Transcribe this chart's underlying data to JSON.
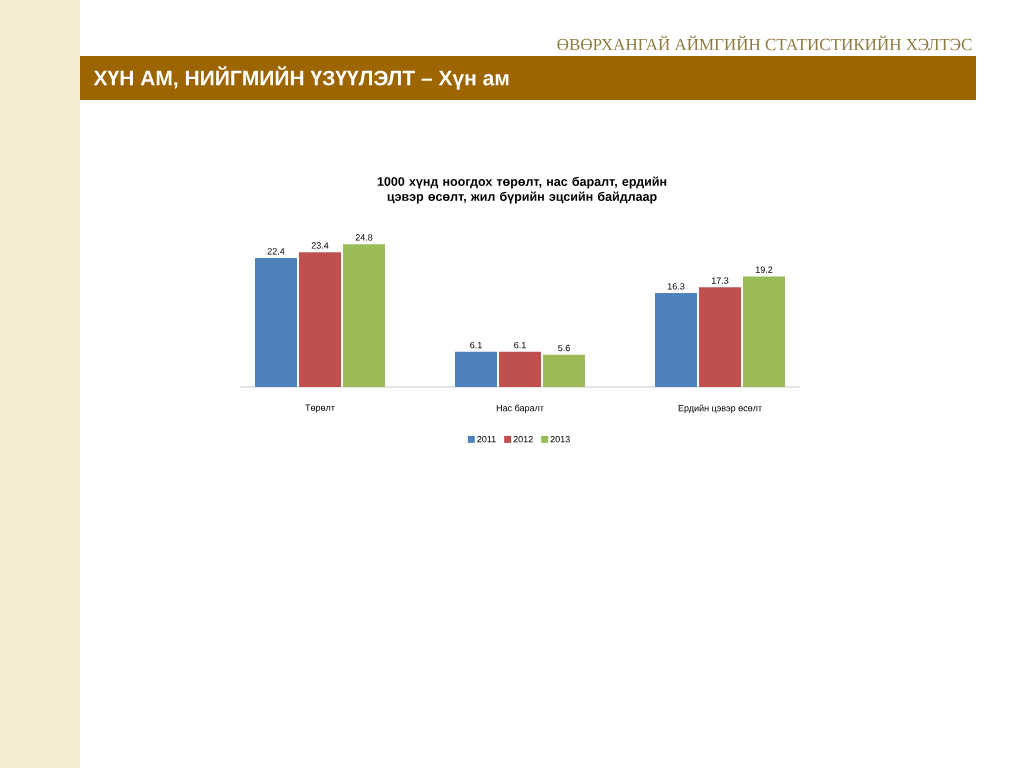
{
  "chart_data": {
    "type": "bar",
    "title": "1000 хүнд ноогдох төрөлт, нас баралт, ердийн цэвэр өсөлт, жил бүрийн эцсийн байдлаар",
    "categories": [
      "Төрөлт",
      "Нас баралт",
      "Ердийн цэвэр өсөлт"
    ],
    "series": [
      {
        "name": "2011",
        "color": "#4f81bd",
        "values": [
          22.4,
          6.1,
          16.3
        ]
      },
      {
        "name": "2012",
        "color": "#c0504d",
        "values": [
          23.4,
          6.1,
          17.3
        ]
      },
      {
        "name": "2013",
        "color": "#9bbb59",
        "values": [
          24.8,
          5.6,
          19.2
        ]
      }
    ],
    "data_labels": true,
    "legend": "bottom",
    "annotations": [
      "ӨВӨРХАНГАЙ АЙМГИЙН СТАТИСТИКИЙН ХЭЛТЭС",
      "ХҮН АМ, НИЙГМИЙН ҮЗҮҮЛЭЛТ – Хүн ам"
    ]
  }
}
